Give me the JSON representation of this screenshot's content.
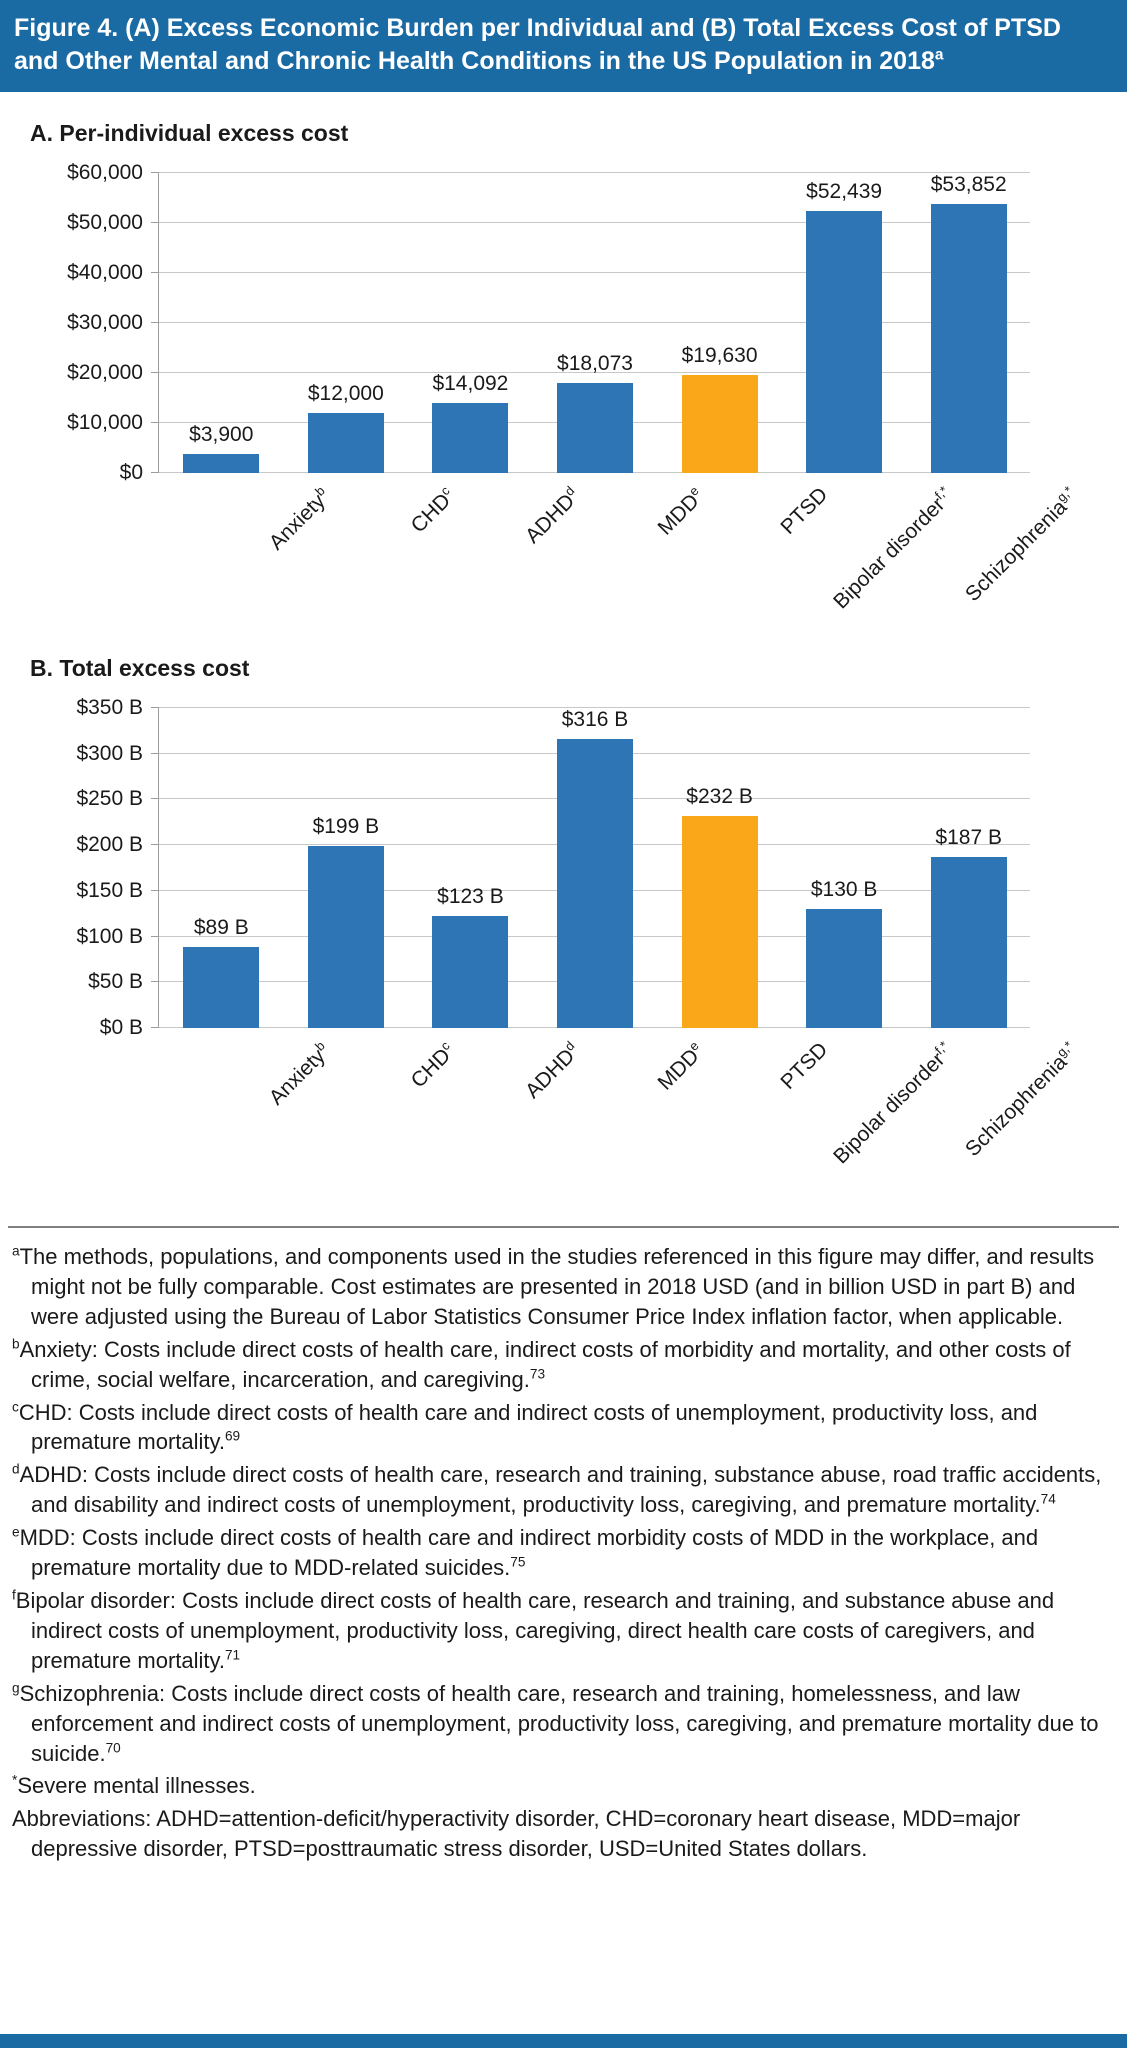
{
  "figure": {
    "title": "Figure 4. (A) Excess Economic Burden per Individual and (B) Total Excess Cost of PTSD and Other Mental and Chronic Health Conditions in the US Population in 2018",
    "title_sup": "a"
  },
  "colors": {
    "header_bg": "#1A6AA3",
    "footer_bg": "#1A6AA3",
    "bar_primary": "#2E75B6",
    "bar_highlight": "#FAA819",
    "gridline": "#C8C8C8"
  },
  "chart_data": [
    {
      "type": "bar",
      "title": "A. Per-individual excess cost",
      "categories": [
        {
          "label": "Anxiety",
          "sup": "b"
        },
        {
          "label": "CHD",
          "sup": "c"
        },
        {
          "label": "ADHD",
          "sup": "d"
        },
        {
          "label": "MDD",
          "sup": "e"
        },
        {
          "label": "PTSD",
          "sup": ""
        },
        {
          "label": "Bipolar disorder",
          "sup": "f,*"
        },
        {
          "label": "Schizophrenia",
          "sup": "g,*"
        }
      ],
      "values": [
        3900,
        12000,
        14092,
        18073,
        19630,
        52439,
        53852
      ],
      "value_labels": [
        "$3,900",
        "$12,000",
        "$14,092",
        "$18,073",
        "$19,630",
        "$52,439",
        "$53,852"
      ],
      "highlight_index": 4,
      "ylim": [
        0,
        60000
      ],
      "ytick_step": 10000,
      "ytick_labels": [
        "$0",
        "$10,000",
        "$20,000",
        "$30,000",
        "$40,000",
        "$50,000",
        "$60,000"
      ],
      "grid": true,
      "legend": "none",
      "xlabel": "",
      "ylabel": ""
    },
    {
      "type": "bar",
      "title": "B. Total excess cost",
      "categories": [
        {
          "label": "Anxiety",
          "sup": "b"
        },
        {
          "label": "CHD",
          "sup": "c"
        },
        {
          "label": "ADHD",
          "sup": "d"
        },
        {
          "label": "MDD",
          "sup": "e"
        },
        {
          "label": "PTSD",
          "sup": ""
        },
        {
          "label": "Bipolar disorder",
          "sup": "f,*"
        },
        {
          "label": "Schizophrenia",
          "sup": "g,*"
        }
      ],
      "values": [
        89,
        199,
        123,
        316,
        232,
        130,
        187
      ],
      "value_labels": [
        "$89 B",
        "$199 B",
        "$123 B",
        "$316 B",
        "$232 B",
        "$130 B",
        "$187 B"
      ],
      "highlight_index": 4,
      "ylim": [
        0,
        350
      ],
      "ytick_step": 50,
      "ytick_labels": [
        "$0 B",
        "$50 B",
        "$100 B",
        "$150 B",
        "$200 B",
        "$250 B",
        "$300 B",
        "$350 B"
      ],
      "grid": true,
      "legend": "none",
      "xlabel": "",
      "ylabel": ""
    }
  ],
  "footnotes": [
    {
      "sup": "a",
      "text": "The methods, populations, and components used in the studies referenced in this figure may differ, and results might not be fully comparable. Cost estimates are presented in 2018 USD (and in billion USD in part B) and were adjusted using the Bureau of Labor Statistics Consumer Price Index inflation factor, when applicable.",
      "ref": ""
    },
    {
      "sup": "b",
      "text": "Anxiety: Costs include direct costs of health care, indirect costs of morbidity and mortality, and other costs of crime, social welfare, incarceration, and caregiving.",
      "ref": "73"
    },
    {
      "sup": "c",
      "text": "CHD: Costs include direct costs of health care and indirect costs of unemployment, productivity loss, and premature mortality.",
      "ref": "69"
    },
    {
      "sup": "d",
      "text": "ADHD: Costs include direct costs of health care, research and training, substance abuse, road traffic accidents, and disability and indirect costs of unemployment, productivity loss, caregiving, and premature mortality.",
      "ref": "74"
    },
    {
      "sup": "e",
      "text": "MDD: Costs include direct costs of health care and indirect morbidity costs of MDD in the workplace, and premature mortality due to MDD-related suicides.",
      "ref": "75"
    },
    {
      "sup": "f",
      "text": "Bipolar disorder: Costs include direct costs of health care, research and training, and substance abuse and indirect costs of unemployment, productivity loss, caregiving, direct health care costs of caregivers, and premature mortality.",
      "ref": "71"
    },
    {
      "sup": "g",
      "text": "Schizophrenia: Costs include direct costs of health care, research and training, homelessness, and law enforcement and indirect costs of unemployment, productivity loss, caregiving, and premature mortality due to suicide.",
      "ref": "70"
    },
    {
      "sup": "*",
      "text": "Severe mental illnesses.",
      "ref": ""
    },
    {
      "sup": "",
      "text": "Abbreviations: ADHD=attention-deficit/hyperactivity disorder, CHD=coronary heart disease, MDD=major depressive disorder, PTSD=posttraumatic stress disorder, USD=United States dollars.",
      "ref": ""
    }
  ]
}
